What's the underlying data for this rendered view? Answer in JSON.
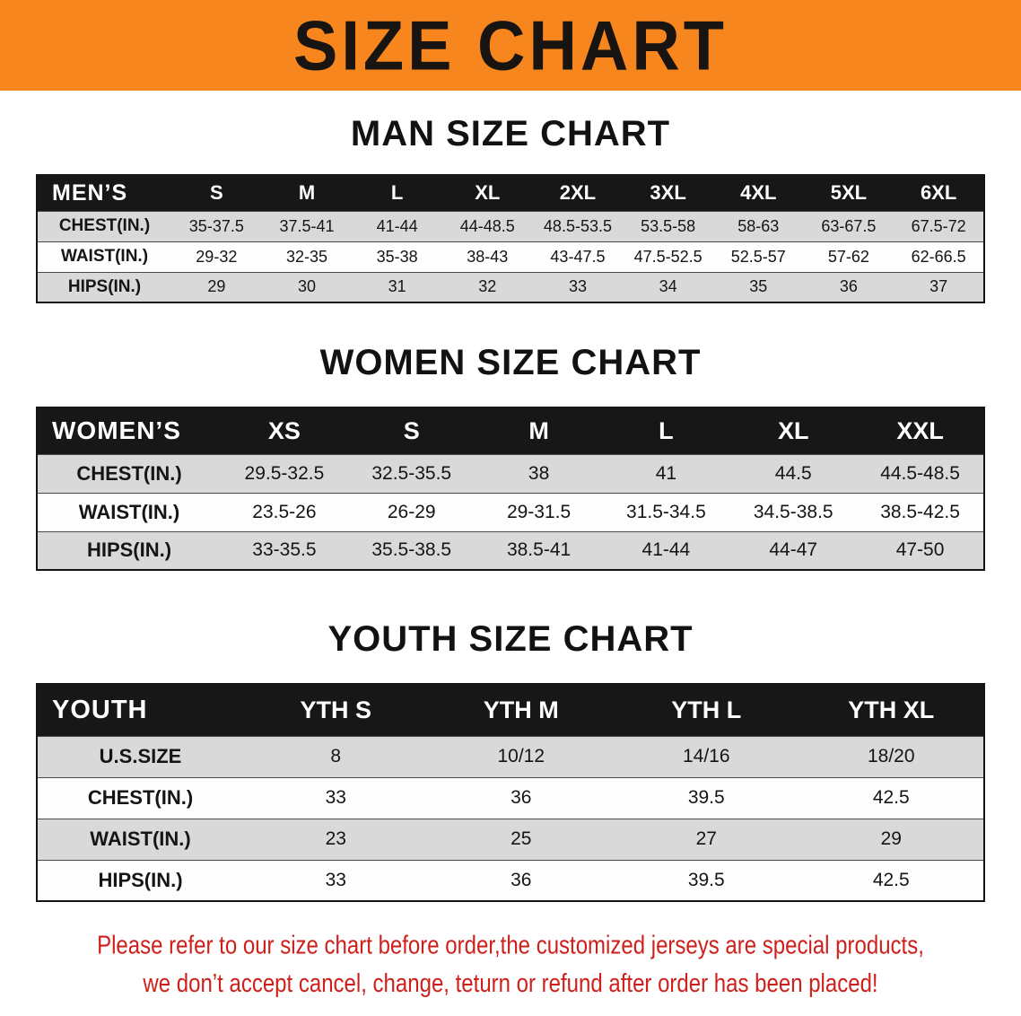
{
  "banner": {
    "title": "SIZE CHART",
    "bg_color": "#f6861d"
  },
  "men": {
    "heading": "MAN SIZE CHART",
    "table": {
      "label": "MEN’S",
      "columns": [
        "S",
        "M",
        "L",
        "XL",
        "2XL",
        "3XL",
        "4XL",
        "5XL",
        "6XL"
      ],
      "rows": [
        {
          "label": "CHEST(IN.)",
          "values": [
            "35-37.5",
            "37.5-41",
            "41-44",
            "44-48.5",
            "48.5-53.5",
            "53.5-58",
            "58-63",
            "63-67.5",
            "67.5-72"
          ]
        },
        {
          "label": "WAIST(IN.)",
          "values": [
            "29-32",
            "32-35",
            "35-38",
            "38-43",
            "43-47.5",
            "47.5-52.5",
            "52.5-57",
            "57-62",
            "62-66.5"
          ]
        },
        {
          "label": "HIPS(IN.)",
          "values": [
            "29",
            "30",
            "31",
            "32",
            "33",
            "34",
            "35",
            "36",
            "37"
          ]
        }
      ]
    }
  },
  "women": {
    "heading": "WOMEN SIZE CHART",
    "table": {
      "label": "WOMEN’S",
      "columns": [
        "XS",
        "S",
        "M",
        "L",
        "XL",
        "XXL"
      ],
      "rows": [
        {
          "label": "CHEST(IN.)",
          "values": [
            "29.5-32.5",
            "32.5-35.5",
            "38",
            "41",
            "44.5",
            "44.5-48.5"
          ]
        },
        {
          "label": "WAIST(IN.)",
          "values": [
            "23.5-26",
            "26-29",
            "29-31.5",
            "31.5-34.5",
            "34.5-38.5",
            "38.5-42.5"
          ]
        },
        {
          "label": "HIPS(IN.)",
          "values": [
            "33-35.5",
            "35.5-38.5",
            "38.5-41",
            "41-44",
            "44-47",
            "47-50"
          ]
        }
      ]
    }
  },
  "youth": {
    "heading": "YOUTH SIZE CHART",
    "table": {
      "label": "YOUTH",
      "columns": [
        "YTH S",
        "YTH M",
        "YTH L",
        "YTH XL"
      ],
      "rows": [
        {
          "label": "U.S.SIZE",
          "values": [
            "8",
            "10/12",
            "14/16",
            "18/20"
          ]
        },
        {
          "label": "CHEST(IN.)",
          "values": [
            "33",
            "36",
            "39.5",
            "42.5"
          ]
        },
        {
          "label": "WAIST(IN.)",
          "values": [
            "23",
            "25",
            "27",
            "29"
          ]
        },
        {
          "label": "HIPS(IN.)",
          "values": [
            "33",
            "36",
            "39.5",
            "42.5"
          ]
        }
      ]
    }
  },
  "disclaimer": {
    "line1": "Please refer to our size chart before order,the customized jerseys are special products,",
    "line2": "we don’t accept cancel, change, teturn or refund after order has been placed!",
    "color": "#cf1f1a"
  }
}
